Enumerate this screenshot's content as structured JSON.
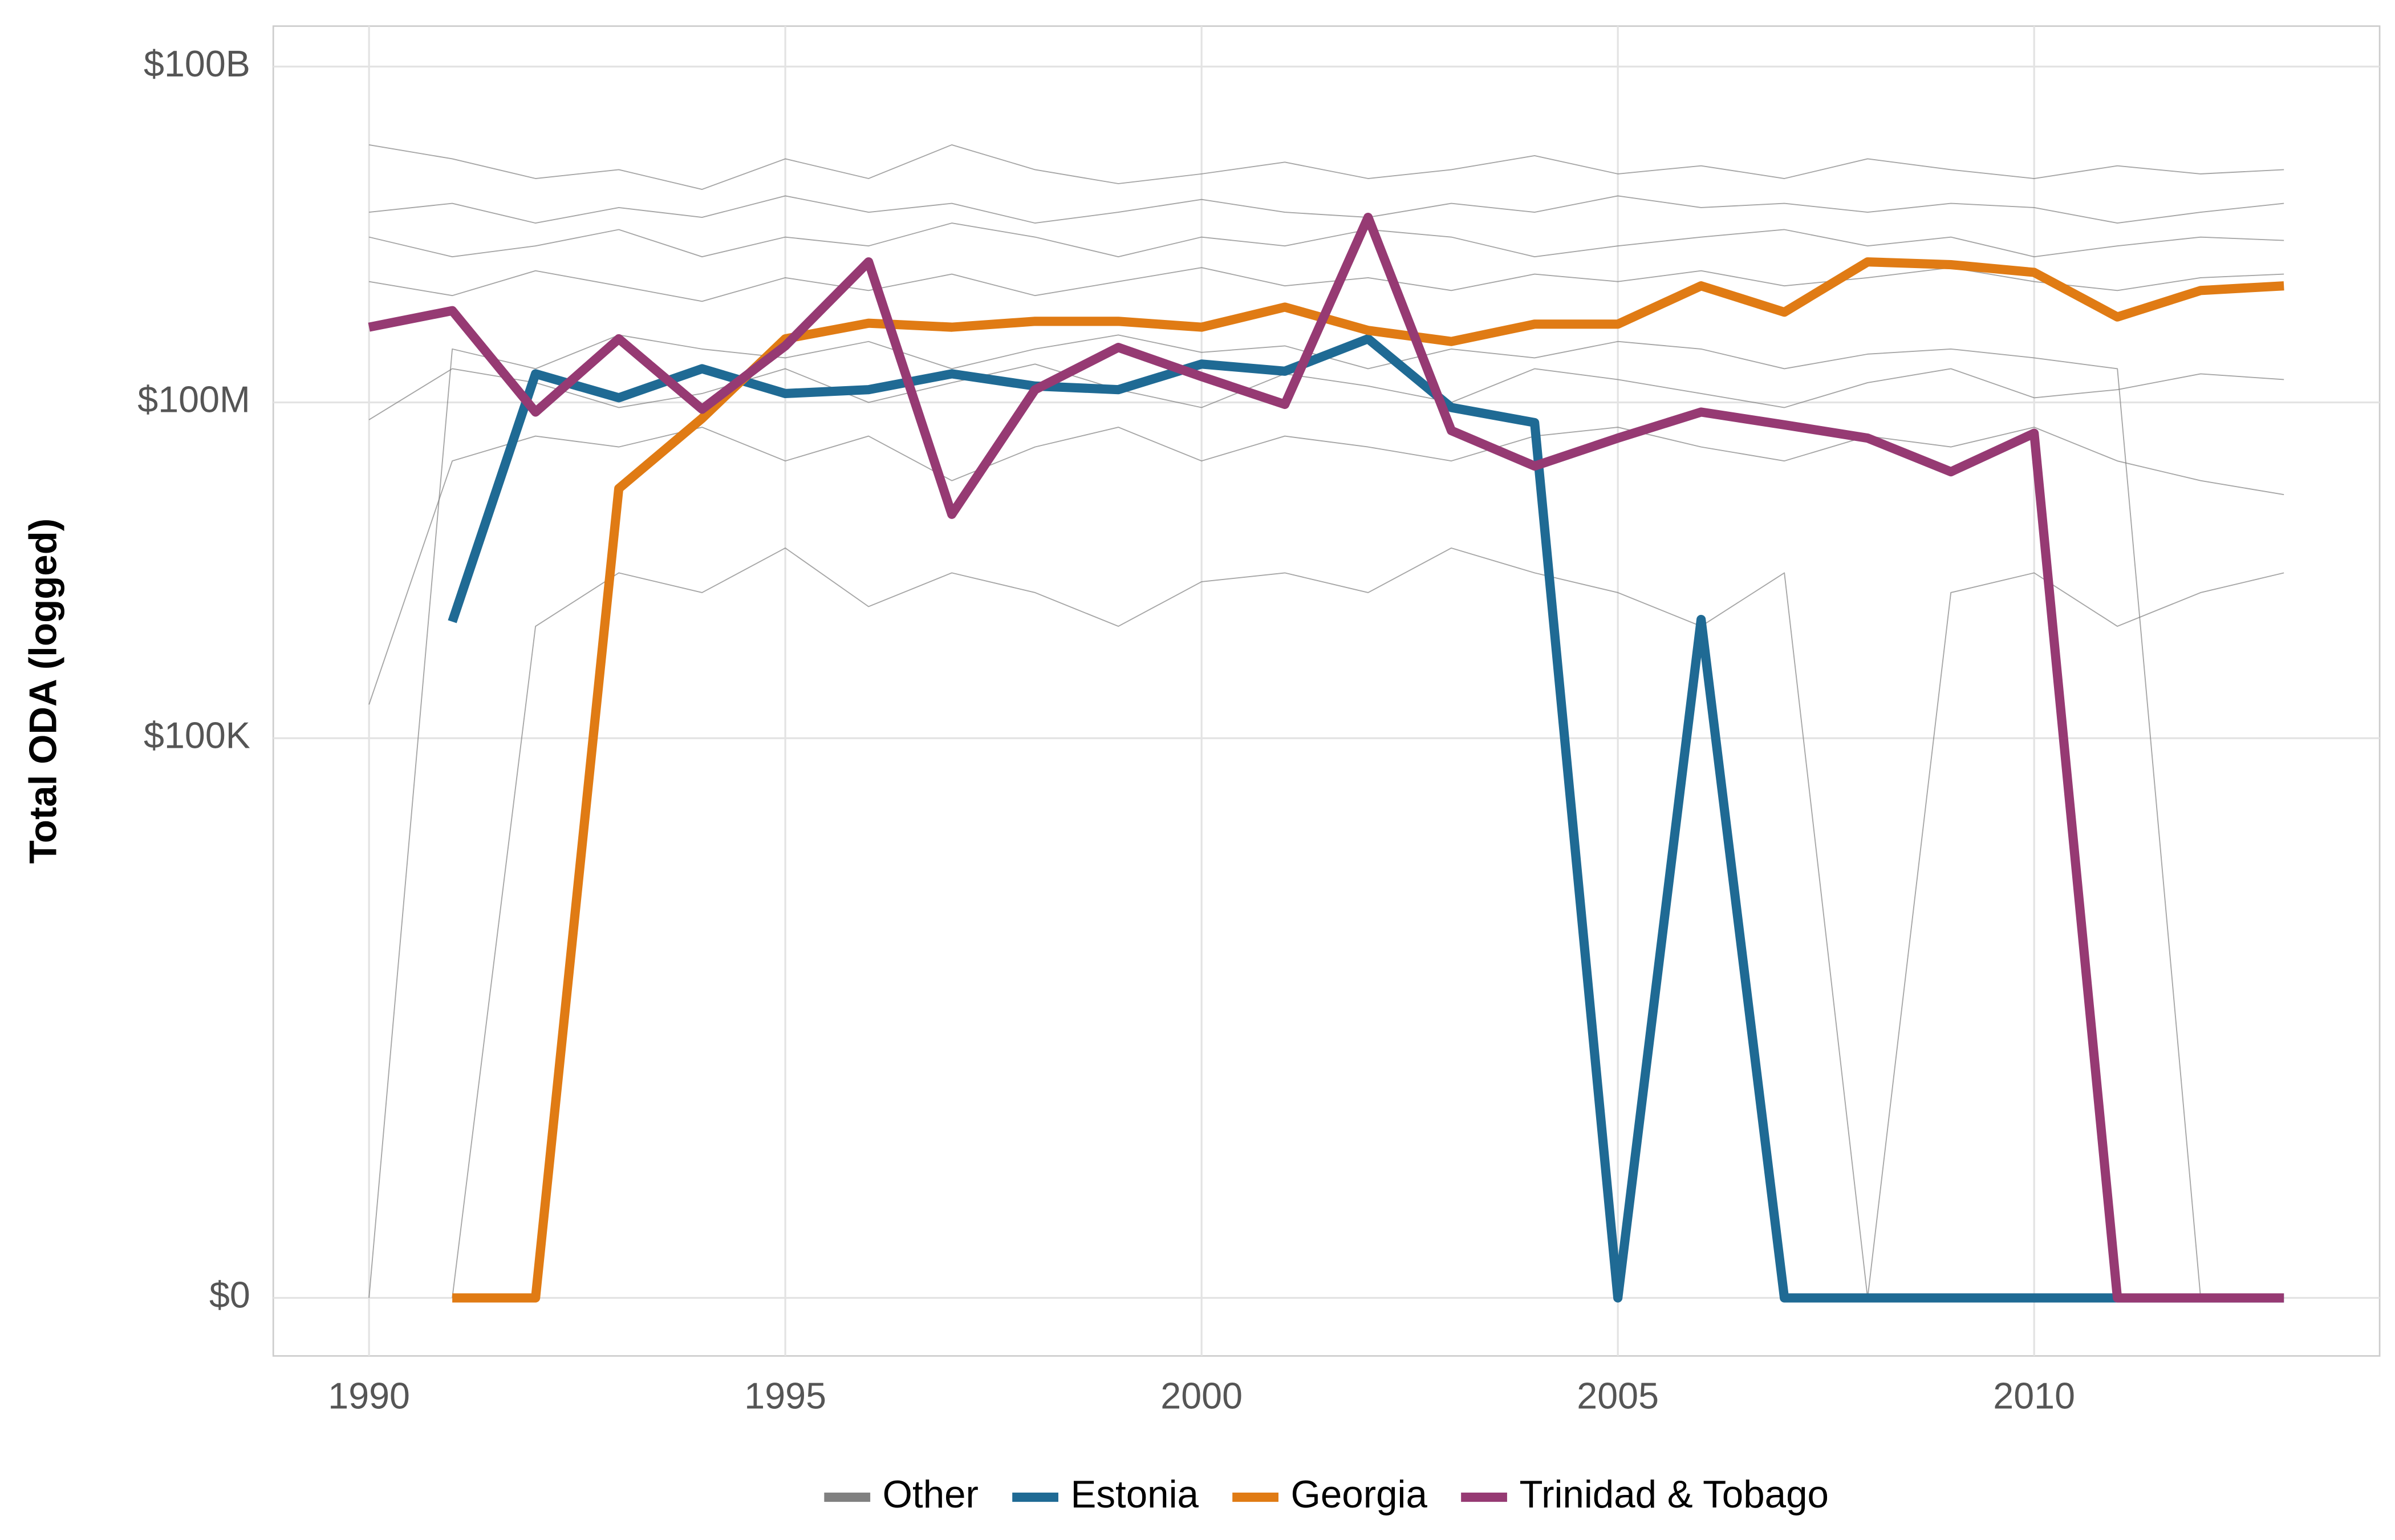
{
  "chart_data": {
    "type": "line",
    "y_label": "Total ODA (logged)",
    "x": [
      1990,
      1991,
      1992,
      1993,
      1994,
      1995,
      1996,
      1997,
      1998,
      1999,
      2000,
      2001,
      2002,
      2003,
      2004,
      2005,
      2006,
      2007,
      2008,
      2009,
      2010,
      2011,
      2012,
      2013
    ],
    "xlim": [
      1988.85,
      2014.15
    ],
    "xticks": [
      1990,
      1995,
      2000,
      2005,
      2010
    ],
    "y_scale": "pseudo_log",
    "ylim": [
      -2.3,
      230000000000
    ],
    "yticks": [
      {
        "value": 0,
        "label": "$0"
      },
      {
        "value": 100000,
        "label": "$100K"
      },
      {
        "value": 100000000,
        "label": "$100M"
      },
      {
        "value": 100000000000,
        "label": "$100B"
      }
    ],
    "grid": true,
    "legend": "bottom",
    "series": [
      {
        "name": "Other",
        "color": "#808080",
        "values": [
          1200000000.0,
          900000000.0,
          1500000000.0,
          1100000000.0,
          800000000.0,
          1300000000.0,
          1000000000.0,
          1400000000.0,
          900000000.0,
          1200000000.0,
          1600000000.0,
          1100000000.0,
          1300000000.0,
          1000000000.0,
          1400000000.0,
          1200000000.0,
          1500000000.0,
          1100000000.0,
          1300000000.0,
          1600000000.0,
          1200000000.0,
          1000000000.0,
          1300000000.0,
          1400000000.0
        ]
      },
      {
        "name": "Other",
        "color": "#808080",
        "values": [
          5000000000.0,
          6000000000.0,
          4000000000.0,
          5500000000.0,
          4500000000.0,
          7000000000.0,
          5000000000.0,
          6000000000.0,
          4000000000.0,
          5000000000.0,
          6500000000.0,
          5000000000.0,
          4500000000.0,
          6000000000.0,
          5000000000.0,
          7000000000.0,
          5500000000.0,
          6000000000.0,
          5000000000.0,
          6000000000.0,
          5500000000.0,
          4000000000.0,
          5000000000.0,
          6000000000.0
        ]
      },
      {
        "name": "Other",
        "color": "#808080",
        "values": [
          0,
          300000000.0,
          200000000.0,
          400000000.0,
          300000000.0,
          250000000.0,
          350000000.0,
          200000000.0,
          300000000.0,
          400000000.0,
          280000000.0,
          320000000.0,
          200000000.0,
          300000000.0,
          250000000.0,
          350000000.0,
          300000000.0,
          200000000.0,
          270000000.0,
          300000000.0,
          250000000.0,
          200000000.0,
          0,
          0
        ]
      },
      {
        "name": "Other",
        "color": "#808080",
        "values": [
          200000.0,
          30000000.0,
          50000000.0,
          40000000.0,
          60000000.0,
          30000000.0,
          50000000.0,
          20000000.0,
          40000000.0,
          60000000.0,
          30000000.0,
          50000000.0,
          40000000.0,
          30000000.0,
          50000000.0,
          60000000.0,
          40000000.0,
          30000000.0,
          50000000.0,
          40000000.0,
          60000000.0,
          30000000.0,
          20000000.0,
          15000000.0
        ]
      },
      {
        "name": "Other",
        "color": "#808080",
        "values": [
          null,
          0,
          1000000.0,
          3000000.0,
          2000000.0,
          5000000.0,
          1500000.0,
          3000000.0,
          2000000.0,
          1000000.0,
          2500000.0,
          3000000.0,
          2000000.0,
          5000000.0,
          3000000.0,
          2000000.0,
          1000000.0,
          3000000.0,
          0,
          2000000.0,
          3000000.0,
          1000000.0,
          2000000.0,
          3000000.0
        ]
      },
      {
        "name": "Other",
        "color": "#808080",
        "values": [
          3000000000.0,
          2000000000.0,
          2500000000.0,
          3500000000.0,
          2000000000.0,
          3000000000.0,
          2500000000.0,
          4000000000.0,
          3000000000.0,
          2000000000.0,
          3000000000.0,
          2500000000.0,
          3500000000.0,
          3000000000.0,
          2000000000.0,
          2500000000.0,
          3000000000.0,
          3500000000.0,
          2500000000.0,
          3000000000.0,
          2000000000.0,
          2500000000.0,
          3000000000.0,
          2800000000.0
        ]
      },
      {
        "name": "Other",
        "color": "#808080",
        "values": [
          70000000.0,
          200000000.0,
          150000000.0,
          90000000.0,
          120000000.0,
          200000000.0,
          100000000.0,
          150000000.0,
          220000000.0,
          130000000.0,
          90000000.0,
          180000000.0,
          140000000.0,
          100000000.0,
          200000000.0,
          160000000.0,
          120000000.0,
          90000000.0,
          150000000.0,
          200000000.0,
          110000000.0,
          130000000.0,
          180000000.0,
          160000000.0
        ]
      },
      {
        "name": "Other",
        "color": "#808080",
        "values": [
          20000000000.0,
          15000000000.0,
          10000000000.0,
          12000000000.0,
          8000000000.0,
          15000000000.0,
          10000000000.0,
          20000000000.0,
          12000000000.0,
          9000000000.0,
          11000000000.0,
          14000000000.0,
          10000000000.0,
          12000000000.0,
          16000000000.0,
          11000000000.0,
          13000000000.0,
          10000000000.0,
          15000000000.0,
          12000000000.0,
          10000000000.0,
          13000000000.0,
          11000000000.0,
          12000000000.0
        ]
      },
      {
        "name": "Estonia",
        "color": "#1f6a94",
        "values": [
          null,
          1100000.0,
          180000000.0,
          110000000.0,
          200000000.0,
          120000000.0,
          130000000.0,
          180000000.0,
          140000000.0,
          130000000.0,
          220000000.0,
          190000000.0,
          370000000.0,
          90000000.0,
          66000000.0,
          0,
          1150000.0,
          0,
          0,
          0,
          0,
          0,
          0,
          0
        ]
      },
      {
        "name": "Georgia",
        "color": "#e07b14",
        "values": [
          null,
          0,
          0,
          17000000.0,
          72000000.0,
          370000000.0,
          510000000.0,
          470000000.0,
          530000000.0,
          530000000.0,
          470000000.0,
          710000000.0,
          440000000.0,
          350000000.0,
          500000000.0,
          500000000.0,
          1100000000.0,
          640000000.0,
          1800000000.0,
          1700000000.0,
          1450000000.0,
          580000000.0,
          1000000000.0,
          1100000000.0
        ]
      },
      {
        "name": "Trinidad & Tobago",
        "color": "#963a73",
        "values": [
          470000000.0,
          660000000.0,
          82000000.0,
          370000000.0,
          87000000.0,
          320000000.0,
          1800000000.0,
          10000000.0,
          130000000.0,
          310000000.0,
          170000000.0,
          96000000.0,
          4500000000.0,
          56000000.0,
          27000000.0,
          48000000.0,
          82000000.0,
          63000000.0,
          48000000.0,
          24000000.0,
          53000000.0,
          0,
          0,
          0
        ]
      }
    ]
  }
}
